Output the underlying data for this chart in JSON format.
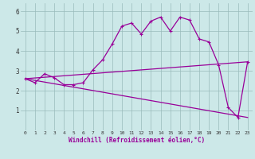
{
  "xlabel": "Windchill (Refroidissement éolien,°C)",
  "xlim": [
    -0.5,
    23.5
  ],
  "ylim": [
    0,
    6.4
  ],
  "xtick_labels": [
    "0",
    "1",
    "2",
    "3",
    "4",
    "5",
    "6",
    "7",
    "8",
    "9",
    "10",
    "11",
    "12",
    "13",
    "14",
    "15",
    "16",
    "17",
    "18",
    "19",
    "20",
    "21",
    "22",
    "23"
  ],
  "xtick_pos": [
    0,
    1,
    2,
    3,
    4,
    5,
    6,
    7,
    8,
    9,
    10,
    11,
    12,
    13,
    14,
    15,
    16,
    17,
    18,
    19,
    20,
    21,
    22,
    23
  ],
  "ytick_labels": [
    "1",
    "2",
    "3",
    "4",
    "5",
    "6"
  ],
  "ytick_pos": [
    1,
    2,
    3,
    4,
    5,
    6
  ],
  "bg_color": "#cce8e8",
  "line_color": "#990099",
  "grid_color": "#99bbbb",
  "series1_x": [
    0,
    1,
    2,
    3,
    4,
    5,
    6,
    7,
    8,
    9,
    10,
    11,
    12,
    13,
    14,
    15,
    16,
    17,
    18,
    19,
    20,
    21,
    22,
    23
  ],
  "series1_y": [
    2.6,
    2.4,
    2.85,
    2.65,
    2.3,
    2.3,
    2.4,
    3.05,
    3.55,
    4.35,
    5.25,
    5.4,
    4.85,
    5.5,
    5.7,
    5.0,
    5.7,
    5.55,
    4.6,
    4.45,
    3.3,
    1.15,
    0.65,
    3.45
  ],
  "series2_x": [
    0,
    23
  ],
  "series2_y": [
    2.6,
    3.45
  ],
  "series3_x": [
    0,
    23
  ],
  "series3_y": [
    2.6,
    0.65
  ]
}
